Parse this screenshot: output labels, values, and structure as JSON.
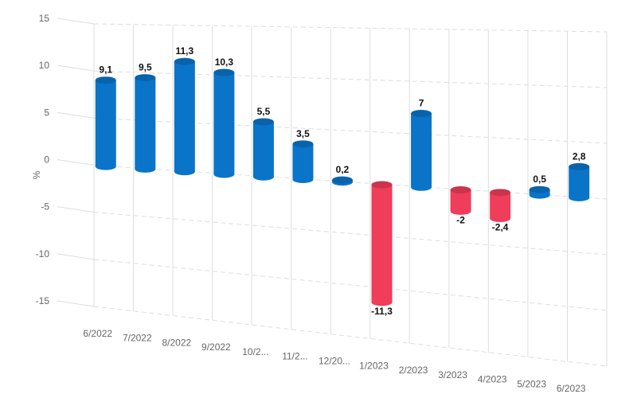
{
  "chart_data": {
    "type": "bar",
    "style": "3d-cylinder",
    "categories": [
      "6/2022",
      "7/2022",
      "8/2022",
      "9/2022",
      "10/2...",
      "11/2...",
      "12/20...",
      "1/2023",
      "2/2023",
      "3/2023",
      "4/2023",
      "5/2023",
      "6/2023"
    ],
    "values": [
      9.1,
      9.5,
      11.3,
      10.3,
      5.5,
      3.5,
      0.2,
      -11.3,
      7,
      -2,
      -2.4,
      0.5,
      2.8
    ],
    "data_labels": [
      "9,1",
      "9,5",
      "11,3",
      "10,3",
      "5,5",
      "3,5",
      "0,2",
      "-11,3",
      "7",
      "-2",
      "-2,4",
      "0,5",
      "2,8"
    ],
    "ylabel": "%",
    "xlabel": "",
    "ylim": [
      -15,
      15
    ],
    "yticks": [
      15,
      10,
      5,
      0,
      -5,
      -10,
      -15
    ],
    "ytick_labels": [
      "15",
      "10",
      "5",
      "0",
      "-5",
      "-10",
      "-15"
    ],
    "grid": true,
    "legend": "none",
    "colors": {
      "positive": "#0a74c9",
      "negative": "#ef3d5a",
      "grid": "#dddddd",
      "axis_text": "#666666"
    }
  }
}
